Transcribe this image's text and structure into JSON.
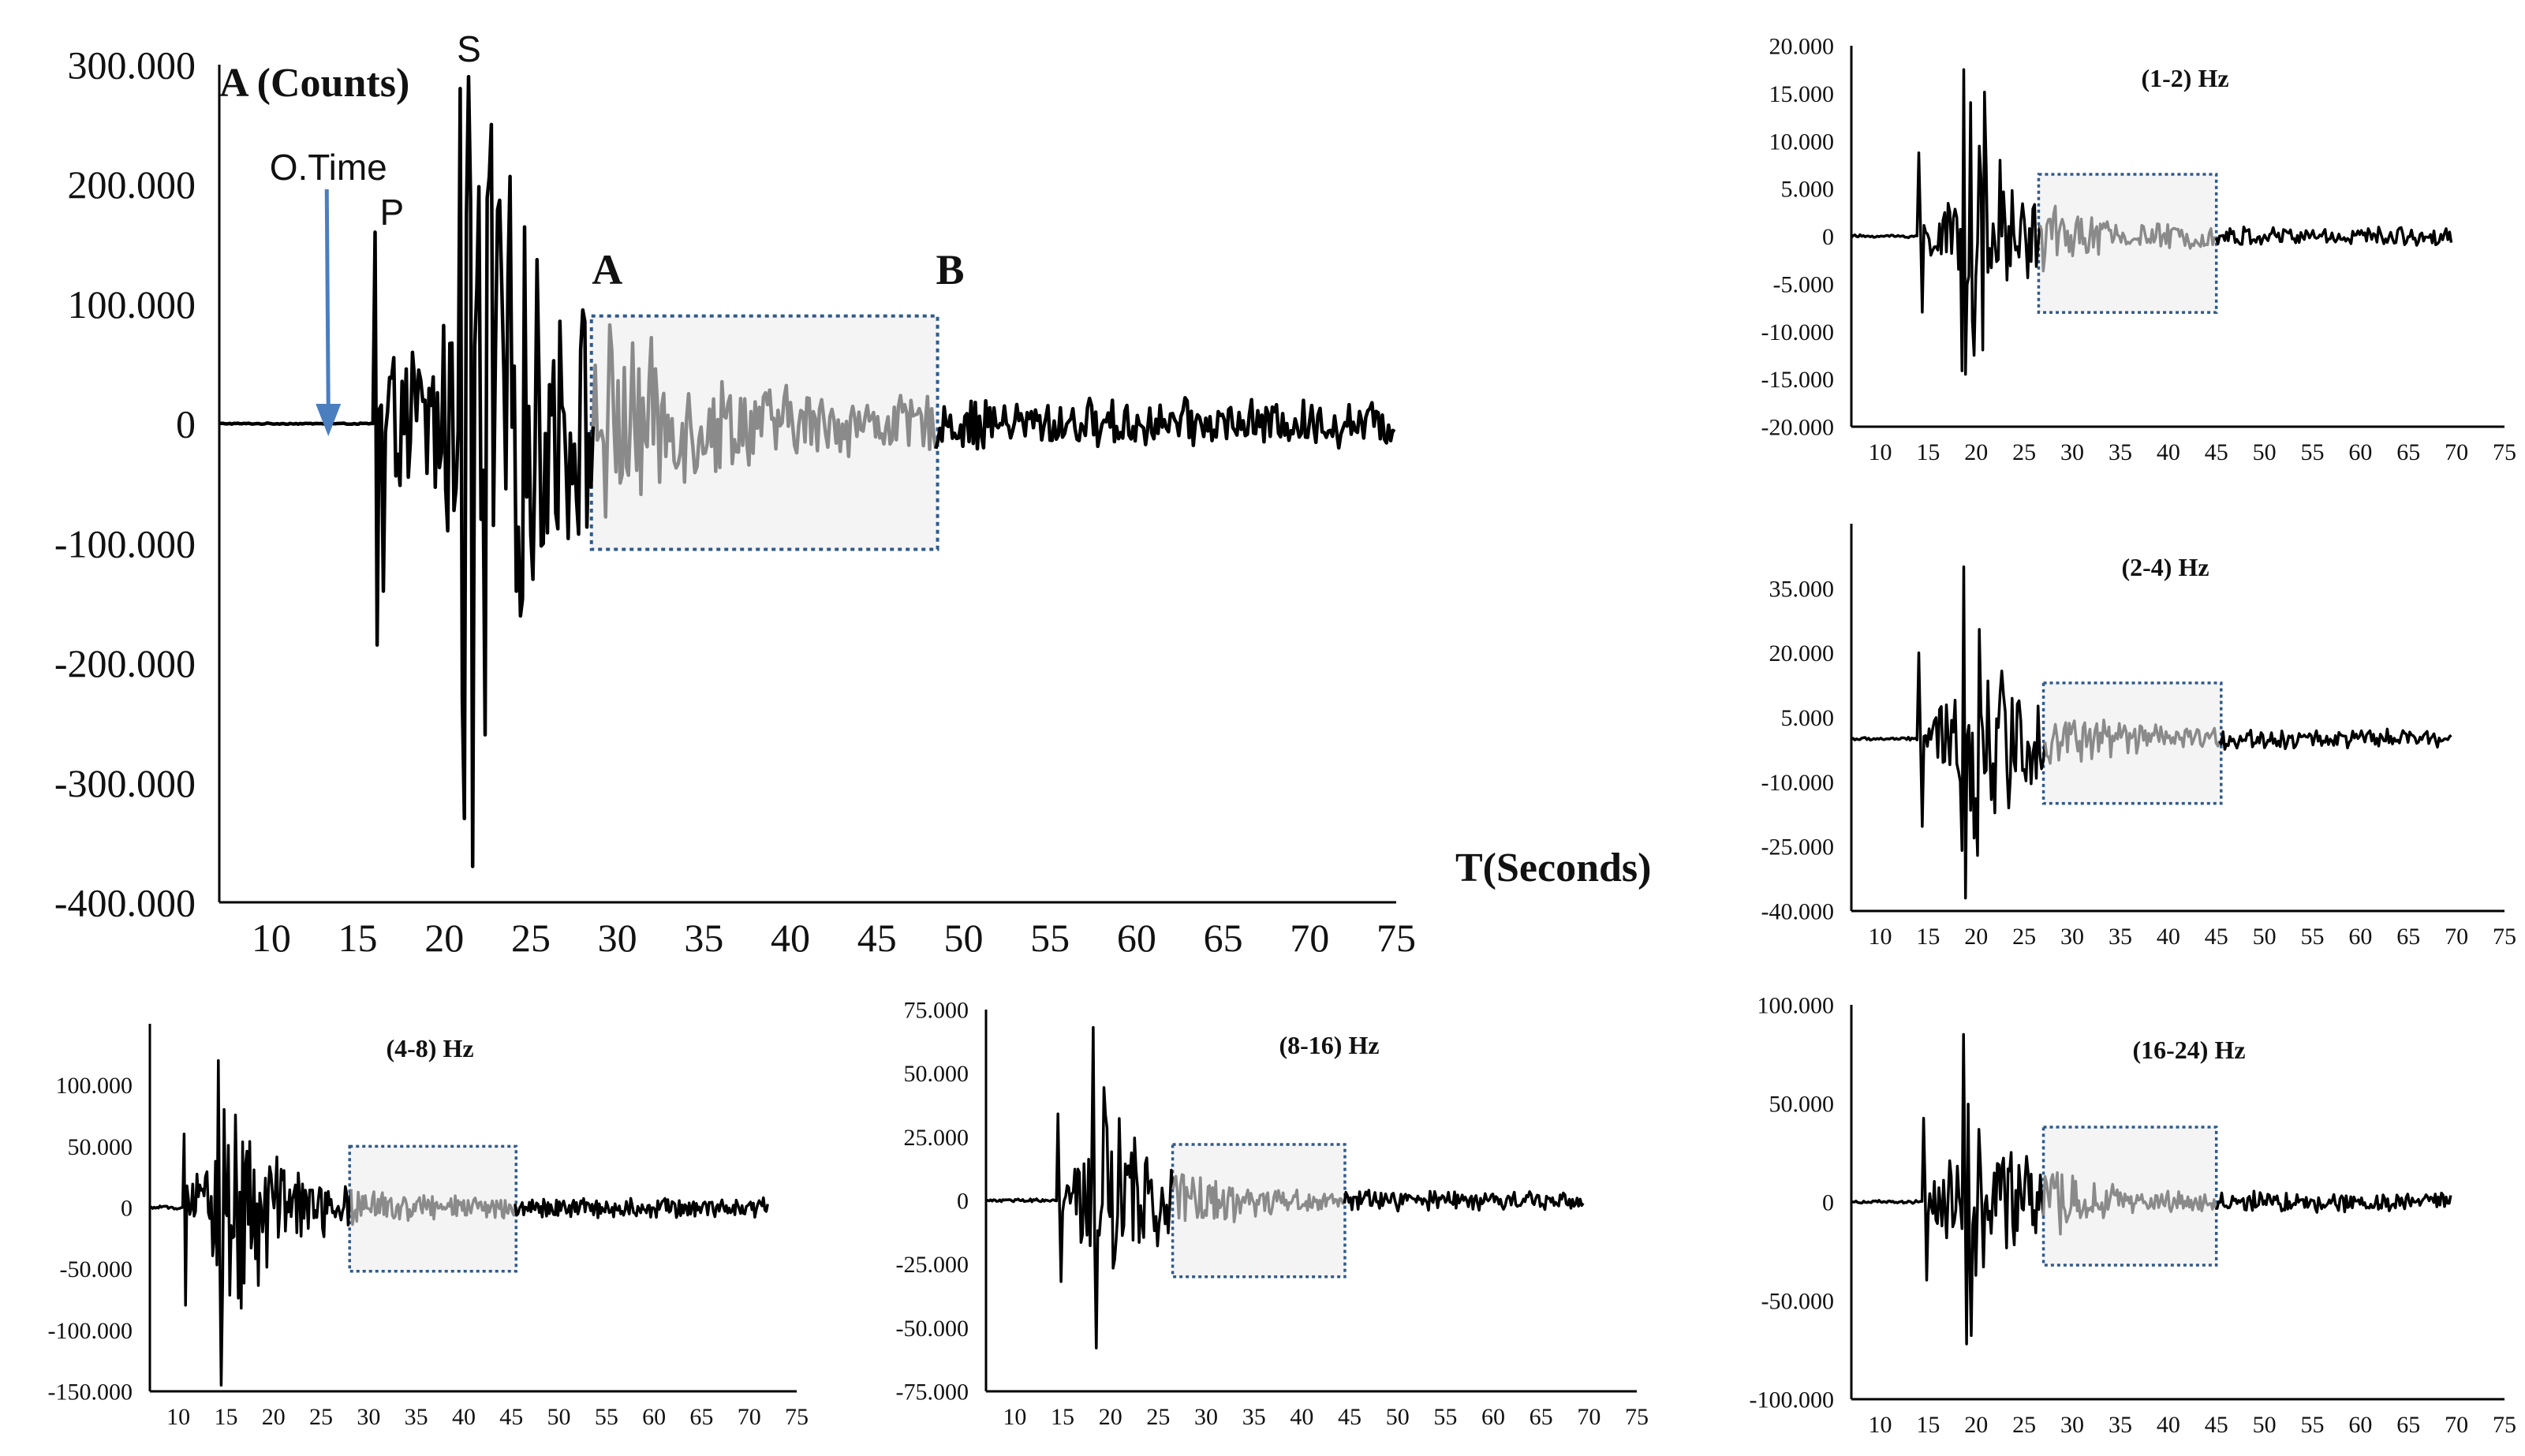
{
  "colors": {
    "trace": "#000000",
    "window_trace": "#8a8a8a",
    "window_box_stroke": "#2f5a8a",
    "window_box_fill": "#f4f4f4",
    "origin_arrow": "#4a7ebf"
  },
  "chart_data": [
    {
      "id": "main",
      "type": "line",
      "title": "",
      "ylabel": "A (Counts)",
      "xlabel": "T(Seconds)",
      "ylim": [
        -400000,
        300000
      ],
      "xlim": [
        7,
        75
      ],
      "y_ticks": [
        "300.000",
        "200.000",
        "100.000",
        "0",
        "-100.000",
        "-200.000",
        "-300.000",
        "-400.000"
      ],
      "x_ticks": [
        "10",
        "15",
        "20",
        "25",
        "30",
        "35",
        "40",
        "45",
        "50",
        "55",
        "60",
        "65",
        "70",
        "75"
      ],
      "annotations": {
        "origin_time": "O.Time",
        "p": "P",
        "s": "S",
        "window_start": "A",
        "window_end": "B"
      },
      "events": {
        "origin_time": 13.3,
        "p_arrival": 16.0,
        "s_arrival": 21.0
      },
      "window": {
        "start": 28.5,
        "end": 48.5,
        "ymin": -105000,
        "ymax": 90000
      },
      "trace": {
        "start": 7,
        "end": 75,
        "peak_positive": 290000,
        "peak_negative": -370000,
        "dt": 0.12
      }
    },
    {
      "id": "band-1-2",
      "type": "line",
      "title": "(1-2) Hz",
      "ylim": [
        -20000,
        20000
      ],
      "xlim": [
        7,
        75
      ],
      "y_ticks": [
        "20.000",
        "15.000",
        "10.000",
        "5.000",
        "0",
        "-5.000",
        "-10.000",
        "-15.000",
        "-20.000"
      ],
      "x_ticks": [
        "10",
        "15",
        "20",
        "25",
        "30",
        "35",
        "40",
        "45",
        "50",
        "55",
        "60",
        "65",
        "70",
        "75"
      ],
      "window": {
        "start": 26.5,
        "end": 45.0,
        "ymin": -8000,
        "ymax": 6500
      },
      "trace": {
        "start": 7,
        "end": 69.5,
        "p_arrival": 14.0,
        "s_arrival": 18.5,
        "peak_positive": 17500,
        "peak_negative": -14500,
        "dt": 0.18
      }
    },
    {
      "id": "band-2-4",
      "type": "line",
      "title": "(2-4) Hz",
      "ylim": [
        -40000,
        50000
      ],
      "xlim": [
        7,
        75
      ],
      "y_ticks": [
        "35.000",
        "20.000",
        "5.000",
        "-10.000",
        "-25.000",
        "-40.000"
      ],
      "x_ticks": [
        "10",
        "15",
        "20",
        "25",
        "30",
        "35",
        "40",
        "45",
        "50",
        "55",
        "60",
        "65",
        "70",
        "75"
      ],
      "window": {
        "start": 27.0,
        "end": 45.5,
        "ymin": -15000,
        "ymax": 13000
      },
      "trace": {
        "start": 7,
        "end": 69.5,
        "p_arrival": 14.0,
        "s_arrival": 18.5,
        "peak_positive": 40000,
        "peak_negative": -37000,
        "dt": 0.18
      }
    },
    {
      "id": "band-4-8",
      "type": "line",
      "title": "(4-8) Hz",
      "ylim": [
        -150000,
        150000
      ],
      "xlim": [
        7,
        75
      ],
      "y_ticks": [
        "100.000",
        "50.000",
        "0",
        "-50.000",
        "-100.000",
        "-150.000"
      ],
      "x_ticks": [
        "10",
        "15",
        "20",
        "25",
        "30",
        "35",
        "40",
        "45",
        "50",
        "55",
        "60",
        "65",
        "70",
        "75"
      ],
      "window": {
        "start": 28.0,
        "end": 45.5,
        "ymin": -52000,
        "ymax": 50000
      },
      "trace": {
        "start": 7,
        "end": 72.0,
        "p_arrival": 10.5,
        "s_arrival": 14.0,
        "peak_positive": 120000,
        "peak_negative": -145000,
        "dt": 0.15
      }
    },
    {
      "id": "band-8-16",
      "type": "line",
      "title": "(8-16) Hz",
      "ylim": [
        -75000,
        75000
      ],
      "xlim": [
        7,
        75
      ],
      "y_ticks": [
        "75.000",
        "50.000",
        "25.000",
        "0",
        "-25.000",
        "-50.000",
        "-75.000"
      ],
      "x_ticks": [
        "10",
        "15",
        "20",
        "25",
        "30",
        "35",
        "40",
        "45",
        "50",
        "55",
        "60",
        "65",
        "70",
        "75"
      ],
      "window": {
        "start": 26.5,
        "end": 44.5,
        "ymin": -30000,
        "ymax": 22000
      },
      "trace": {
        "start": 7,
        "end": 69.5,
        "p_arrival": 14.5,
        "s_arrival": 18.0,
        "peak_positive": 68000,
        "peak_negative": -58000,
        "dt": 0.16
      }
    },
    {
      "id": "band-16-24",
      "type": "line",
      "title": "(16-24) Hz",
      "ylim": [
        -100000,
        100000
      ],
      "xlim": [
        7,
        75
      ],
      "y_ticks": [
        "100.000",
        "50.000",
        "0",
        "-50.000",
        "-100.000"
      ],
      "x_ticks": [
        "10",
        "15",
        "20",
        "25",
        "30",
        "35",
        "40",
        "45",
        "50",
        "55",
        "60",
        "65",
        "70",
        "75"
      ],
      "window": {
        "start": 27.0,
        "end": 45.0,
        "ymin": -32000,
        "ymax": 38000
      },
      "trace": {
        "start": 7,
        "end": 69.5,
        "p_arrival": 14.5,
        "s_arrival": 18.5,
        "peak_positive": 85000,
        "peak_negative": -72000,
        "dt": 0.16
      }
    }
  ]
}
